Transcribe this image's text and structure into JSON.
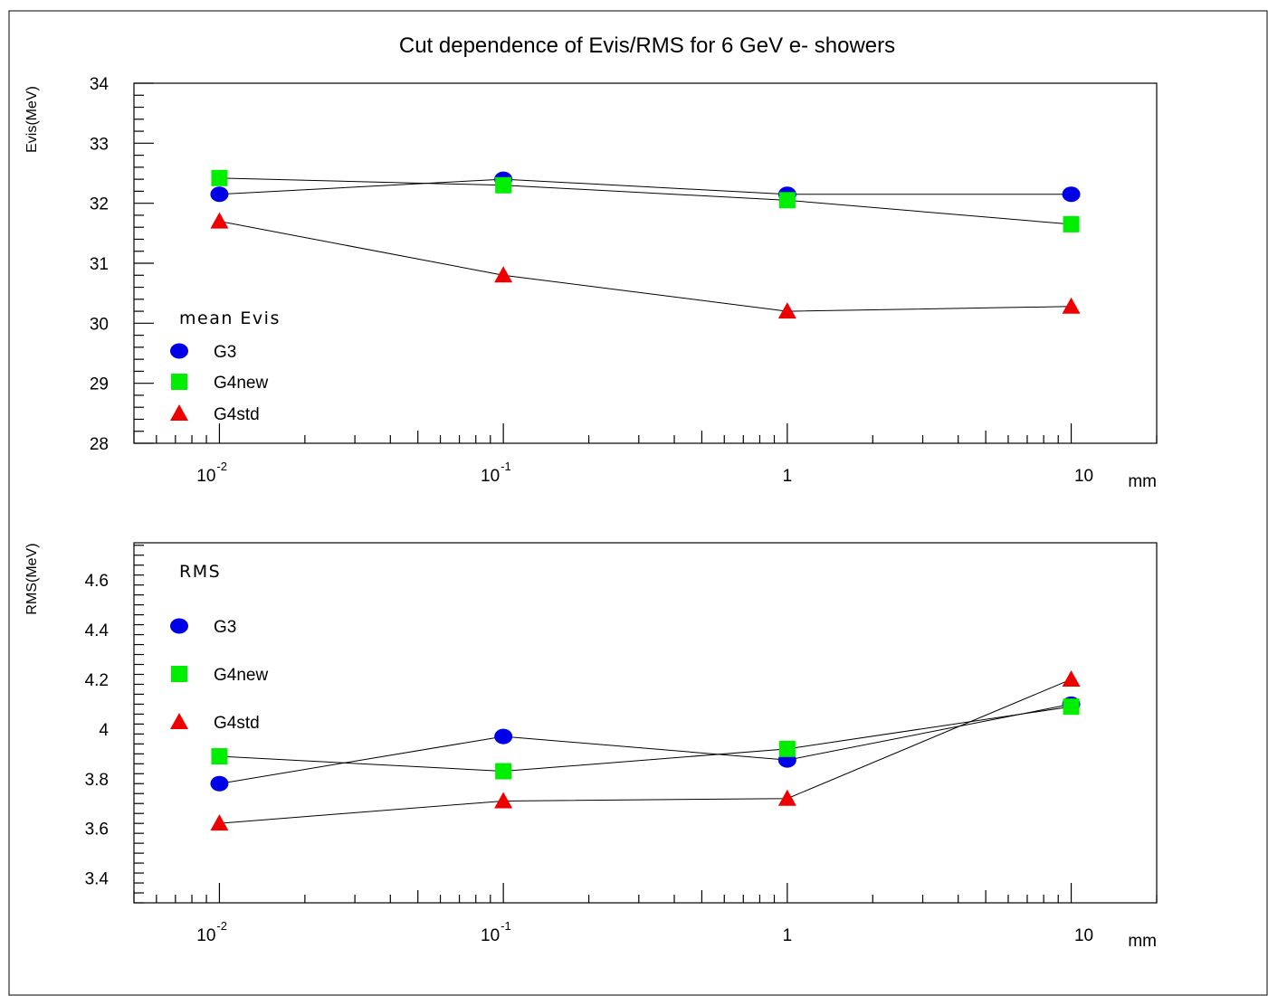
{
  "figure": {
    "top_fragment": "",
    "title": "Cut dependence of Evis/RMS for 6 GeV e- showers",
    "x_unit": "mm",
    "colors": {
      "G3": "#0000e6",
      "G4new": "#00ee00",
      "G4std": "#ee0000",
      "top_fragment": "#e00000"
    },
    "markers": {
      "G3": "circle",
      "G4new": "square",
      "G4std": "triangle"
    }
  },
  "chart_data": [
    {
      "type": "line",
      "id": "evis",
      "title": "",
      "ylabel": "Evis(MeV)",
      "xlabel": "mm",
      "x_scale": "log",
      "xlim": [
        0.005,
        20
      ],
      "ylim": [
        28,
        34
      ],
      "yticks": [
        28,
        29,
        30,
        31,
        32,
        33,
        34
      ],
      "ytick_labels": [
        "28",
        "29",
        "30",
        "31",
        "32",
        "33",
        "34"
      ],
      "xticks": [
        0.01,
        0.1,
        1,
        10
      ],
      "xtick_labels": [
        {
          "base": "10",
          "exp": "-2"
        },
        {
          "base": "10",
          "exp": "-1"
        },
        {
          "base": "1",
          "exp": ""
        },
        {
          "base": "10",
          "exp": ""
        }
      ],
      "annotation": "mean Evis",
      "grid": false,
      "legend": "lower-left",
      "x": [
        0.01,
        0.1,
        1,
        10
      ],
      "series": [
        {
          "name": "G3",
          "values": [
            32.15,
            32.4,
            32.15,
            32.15
          ]
        },
        {
          "name": "G4new",
          "values": [
            32.42,
            32.3,
            32.05,
            31.65
          ]
        },
        {
          "name": "G4std",
          "values": [
            31.7,
            30.8,
            30.2,
            30.28
          ]
        }
      ]
    },
    {
      "type": "line",
      "id": "rms",
      "title": "",
      "ylabel": "RMS(MeV)",
      "xlabel": "mm",
      "x_scale": "log",
      "xlim": [
        0.005,
        20
      ],
      "ylim": [
        3.3,
        4.75
      ],
      "yticks": [
        3.4,
        3.6,
        3.8,
        4.0,
        4.2,
        4.4,
        4.6
      ],
      "ytick_labels": [
        "3.4",
        "3.6",
        "3.8",
        "4",
        "4.2",
        "4.4",
        "4.6"
      ],
      "xticks": [
        0.01,
        0.1,
        1,
        10
      ],
      "xtick_labels": [
        {
          "base": "10",
          "exp": "-2"
        },
        {
          "base": "10",
          "exp": "-1"
        },
        {
          "base": "1",
          "exp": ""
        },
        {
          "base": "10",
          "exp": ""
        }
      ],
      "annotation": "RMS",
      "grid": false,
      "legend": "top-left",
      "x": [
        0.01,
        0.1,
        1,
        10
      ],
      "series": [
        {
          "name": "G3",
          "values": [
            3.78,
            3.97,
            3.875,
            4.1
          ]
        },
        {
          "name": "G4new",
          "values": [
            3.89,
            3.83,
            3.92,
            4.09
          ]
        },
        {
          "name": "G4std",
          "values": [
            3.62,
            3.71,
            3.72,
            4.2
          ]
        }
      ]
    }
  ]
}
